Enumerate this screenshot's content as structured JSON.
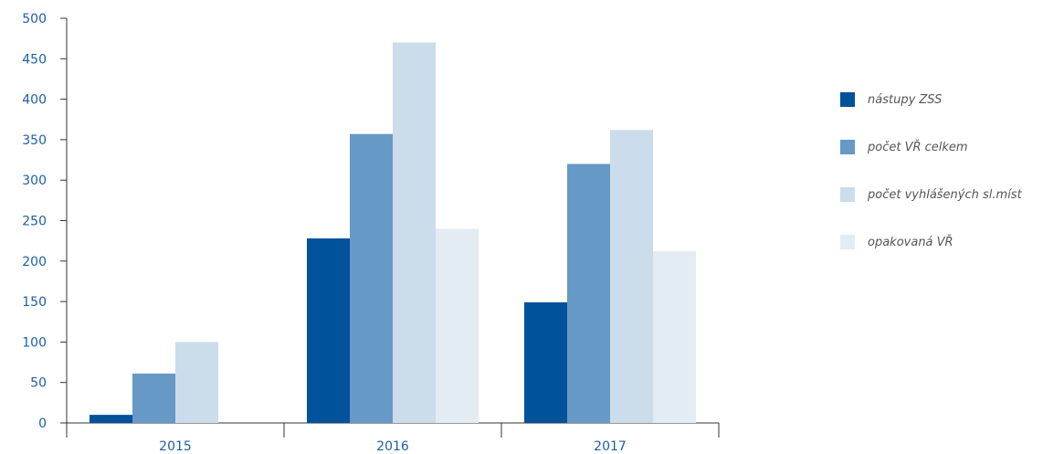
{
  "chart_data": {
    "type": "bar",
    "title": "",
    "xlabel": "",
    "ylabel": "",
    "categories": [
      "2015",
      "2016",
      "2017"
    ],
    "ylim": [
      0,
      500
    ],
    "yticks": [
      0,
      50,
      100,
      150,
      200,
      250,
      300,
      350,
      400,
      450,
      500
    ],
    "grid": false,
    "legend_position": "right",
    "series": [
      {
        "name": "nástupy ZSS",
        "color": "#00529b",
        "values": [
          10,
          228,
          149
        ]
      },
      {
        "name": "počet VŘ celkem",
        "color": "#6699c6",
        "values": [
          61,
          357,
          320
        ]
      },
      {
        "name": "počet vyhlášených sl.míst",
        "color": "#cbdcea",
        "values": [
          100,
          470,
          362
        ]
      },
      {
        "name": "opakovaná VŘ",
        "color": "#e3ebf3",
        "values": [
          0,
          240,
          212
        ]
      }
    ]
  }
}
